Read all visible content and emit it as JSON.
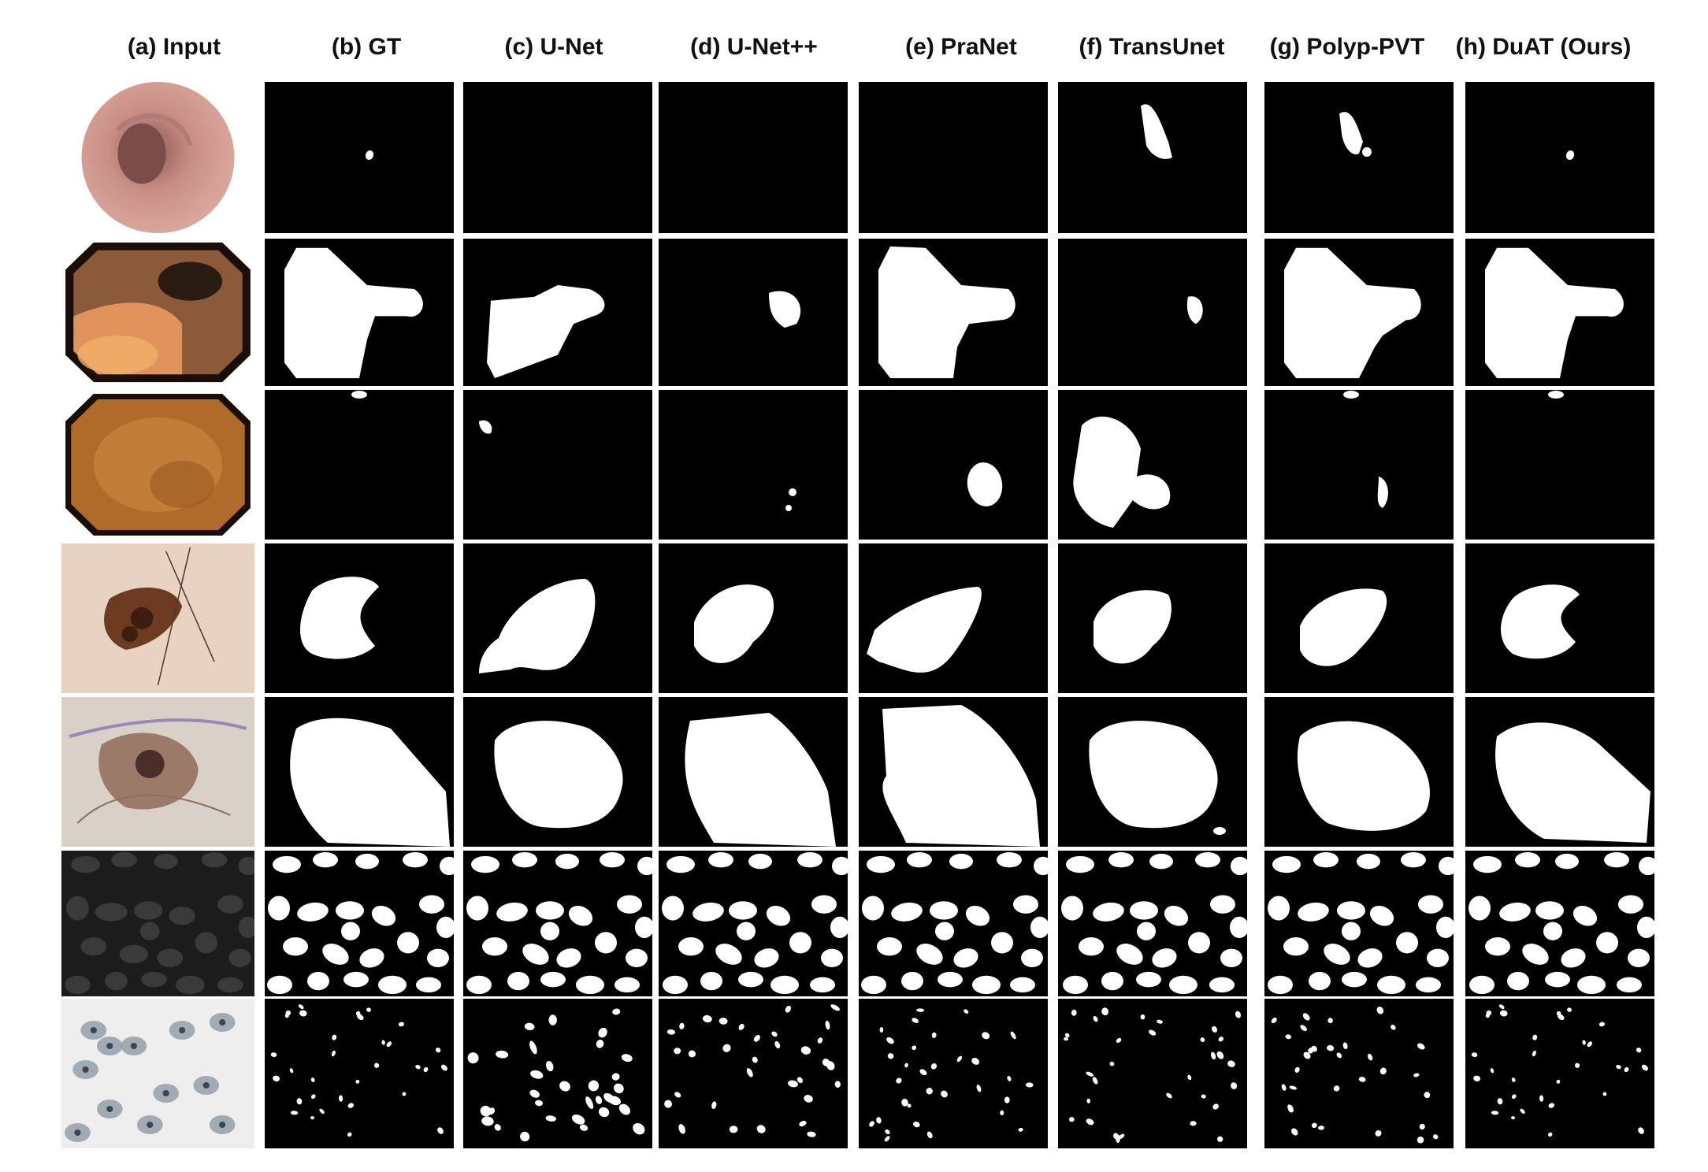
{
  "figure": {
    "columns": [
      {
        "key": "a",
        "label": "(a) Input"
      },
      {
        "key": "b",
        "label": "(b) GT"
      },
      {
        "key": "c",
        "label": "(c) U-Net"
      },
      {
        "key": "d",
        "label": "(d) U-Net++"
      },
      {
        "key": "e",
        "label": "(e) PraNet"
      },
      {
        "key": "f",
        "label": "(f) TransUnet"
      },
      {
        "key": "g",
        "label": "(g) Polyp-PVT"
      },
      {
        "key": "h",
        "label": "(h) DuAT (Ours)"
      }
    ],
    "rows": [
      {
        "name": "colonoscopy-small-polyp",
        "input": "round endoscopic view of pink colon lumen"
      },
      {
        "name": "colonoscopy-large-polyp",
        "input": "octagonal endoscopic view with large polyp"
      },
      {
        "name": "colonoscopy-orange",
        "input": "octagonal orange endoscopic view"
      },
      {
        "name": "skin-lesion-1",
        "input": "dermoscopy image of brown lesion"
      },
      {
        "name": "skin-lesion-2",
        "input": "dermoscopy image with hairs and ink"
      },
      {
        "name": "nuclei",
        "input": "fluorescence nuclei image"
      },
      {
        "name": "cells",
        "input": "cytology image with scattered cells"
      }
    ],
    "colors": {
      "mask_bg": "#000000",
      "mask_fg": "#ffffff",
      "page_bg": "#ffffff"
    }
  }
}
